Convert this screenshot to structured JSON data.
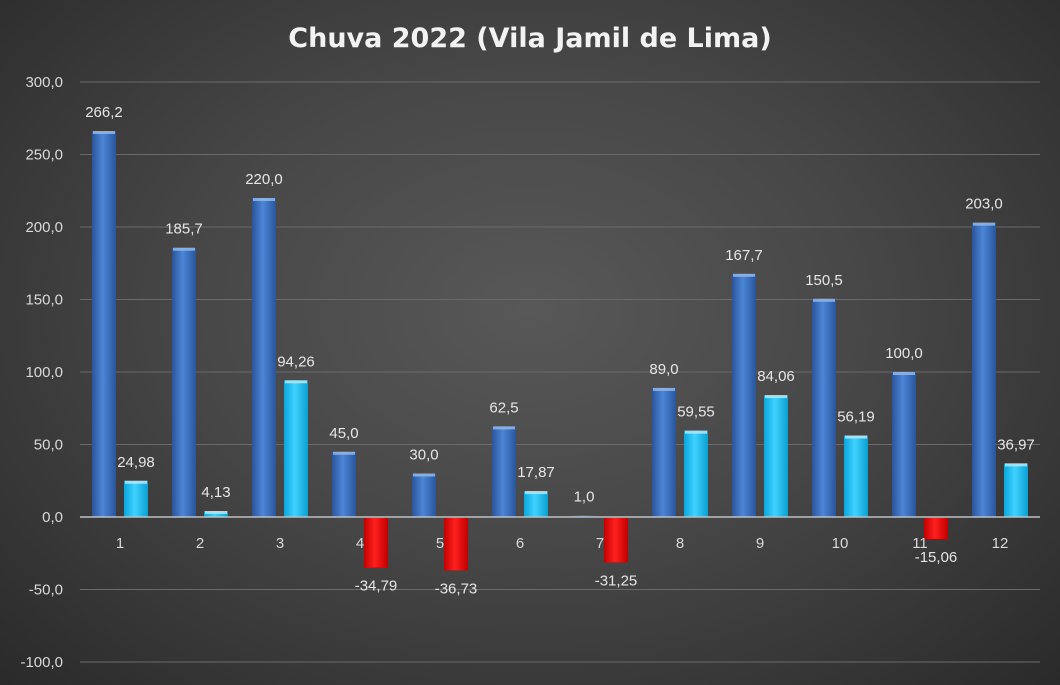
{
  "chart_data": {
    "type": "bar",
    "title": "Chuva 2022 (Vila Jamil de Lima)",
    "categories": [
      "1",
      "2",
      "3",
      "4",
      "5",
      "6",
      "7",
      "8",
      "9",
      "10",
      "11",
      "12"
    ],
    "series": [
      {
        "values": [
          266.2,
          185.7,
          220.0,
          45.0,
          30.0,
          62.5,
          1.0,
          89.0,
          167.7,
          150.5,
          100.0,
          203.0
        ],
        "labels": [
          "266,2",
          "185,7",
          "220,0",
          "45,0",
          "30,0",
          "62,5",
          "1,0",
          "89,0",
          "167,7",
          "150,5",
          "100,0",
          "203,0"
        ],
        "color": "#3d74c4"
      },
      {
        "values": [
          24.98,
          4.13,
          94.26,
          -34.79,
          -36.73,
          17.87,
          -31.25,
          59.55,
          84.06,
          56.19,
          -15.06,
          36.97
        ],
        "labels": [
          "24,98",
          "4,13",
          "94,26",
          "-34,79",
          "-36,73",
          "17,87",
          "-31,25",
          "59,55",
          "84,06",
          "56,19",
          "-15,06",
          "36,97"
        ],
        "color": "#1ec0f2",
        "negative_color": "#ee0000"
      }
    ],
    "ylim": [
      -100,
      300
    ],
    "yticks": [
      300,
      250,
      200,
      150,
      100,
      50,
      0,
      -50,
      -100
    ],
    "ytick_labels": [
      "300,0",
      "250,0",
      "200,0",
      "150,0",
      "100,0",
      "50,0",
      "0,0",
      "-50,0",
      "-100,0"
    ],
    "grid": true,
    "legend": "none"
  }
}
